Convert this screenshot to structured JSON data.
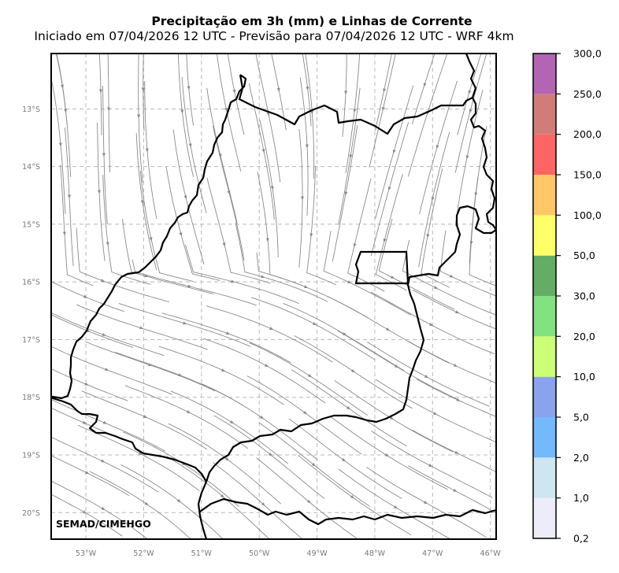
{
  "title": "Precipitação em 3h (mm) e Linhas de Corrente",
  "subtitle": "Iniciado em 07/04/2026 12 UTC - Previsão para 07/04/2026 12 UTC - WRF 4km",
  "credit": "SEMAD/CIMEHGO",
  "map": {
    "lon_range": [
      -53.6,
      -45.9
    ],
    "lat_range": [
      -20.46,
      -12.04
    ],
    "lon_ticks": [
      {
        "value": -53,
        "label": "53°W"
      },
      {
        "value": -52,
        "label": "52°W"
      },
      {
        "value": -51,
        "label": "51°W"
      },
      {
        "value": -50,
        "label": "50°W"
      },
      {
        "value": -49,
        "label": "49°W"
      },
      {
        "value": -48,
        "label": "48°W"
      },
      {
        "value": -47,
        "label": "47°W"
      },
      {
        "value": -46,
        "label": "46°W"
      }
    ],
    "lat_ticks": [
      {
        "value": -13,
        "label": "13°S"
      },
      {
        "value": -14,
        "label": "14°S"
      },
      {
        "value": -15,
        "label": "15°S"
      },
      {
        "value": -16,
        "label": "16°S"
      },
      {
        "value": -17,
        "label": "17°S"
      },
      {
        "value": -18,
        "label": "18°S"
      },
      {
        "value": -19,
        "label": "19°S"
      },
      {
        "value": -20,
        "label": "20°S"
      }
    ],
    "gridlines": true,
    "streamline_color": "#8a8a8a",
    "border_color": "#000000"
  },
  "colorbar": {
    "levels": [
      "0,2",
      "1,0",
      "2,0",
      "5,0",
      "10,0",
      "20,0",
      "30,0",
      "50,0",
      "100,0",
      "150,0",
      "200,0",
      "250,0",
      "300,0"
    ],
    "colors": [
      "#ededfa",
      "#cde6ef",
      "#73b9fe",
      "#8aa3ee",
      "#ccff75",
      "#83e27f",
      "#63ae63",
      "#ffff66",
      "#ffc767",
      "#ff6565",
      "#d27c77",
      "#b365b3"
    ]
  }
}
